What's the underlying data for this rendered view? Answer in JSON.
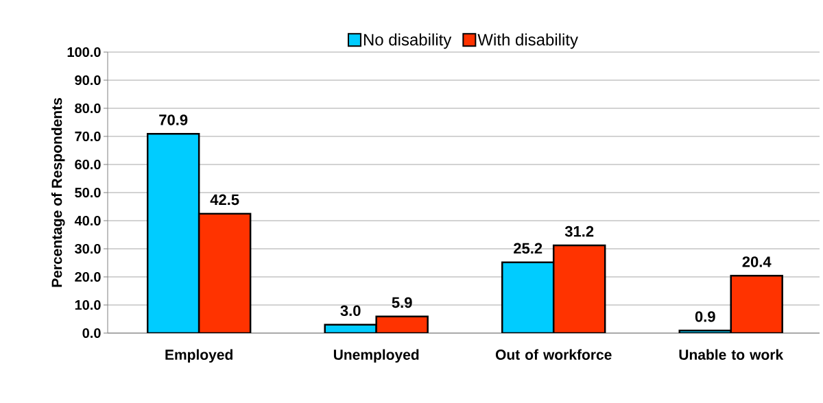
{
  "chart_data": {
    "type": "bar",
    "ylabel": "Percentage of Respondents",
    "categories": [
      "Employed",
      "Unemployed",
      "Out of workforce",
      "Unable to work"
    ],
    "series": [
      {
        "name": "No disability",
        "color": "#00ccff",
        "values": [
          70.9,
          3.0,
          25.2,
          0.9
        ],
        "value_labels": [
          "70.9",
          "3.0",
          "25.2",
          "0.9"
        ]
      },
      {
        "name": "With disability",
        "color": "#ff3300",
        "values": [
          42.5,
          5.9,
          31.2,
          20.4
        ],
        "value_labels": [
          "42.5",
          "5.9",
          "31.2",
          "20.4"
        ]
      }
    ],
    "ylim": [
      0,
      100
    ],
    "yticks": [
      {
        "value": 0,
        "label": "0.0"
      },
      {
        "value": 10,
        "label": "10.0"
      },
      {
        "value": 20,
        "label": "20.0"
      },
      {
        "value": 30,
        "label": "30.0"
      },
      {
        "value": 40,
        "label": "40.0"
      },
      {
        "value": 50,
        "label": "50.0"
      },
      {
        "value": 60,
        "label": "60.0"
      },
      {
        "value": 70,
        "label": "70.0"
      },
      {
        "value": 80,
        "label": "80.0"
      },
      {
        "value": 90,
        "label": "90.0"
      },
      {
        "value": 100,
        "label": "100.0"
      }
    ],
    "grid": "y",
    "legend": "top"
  }
}
